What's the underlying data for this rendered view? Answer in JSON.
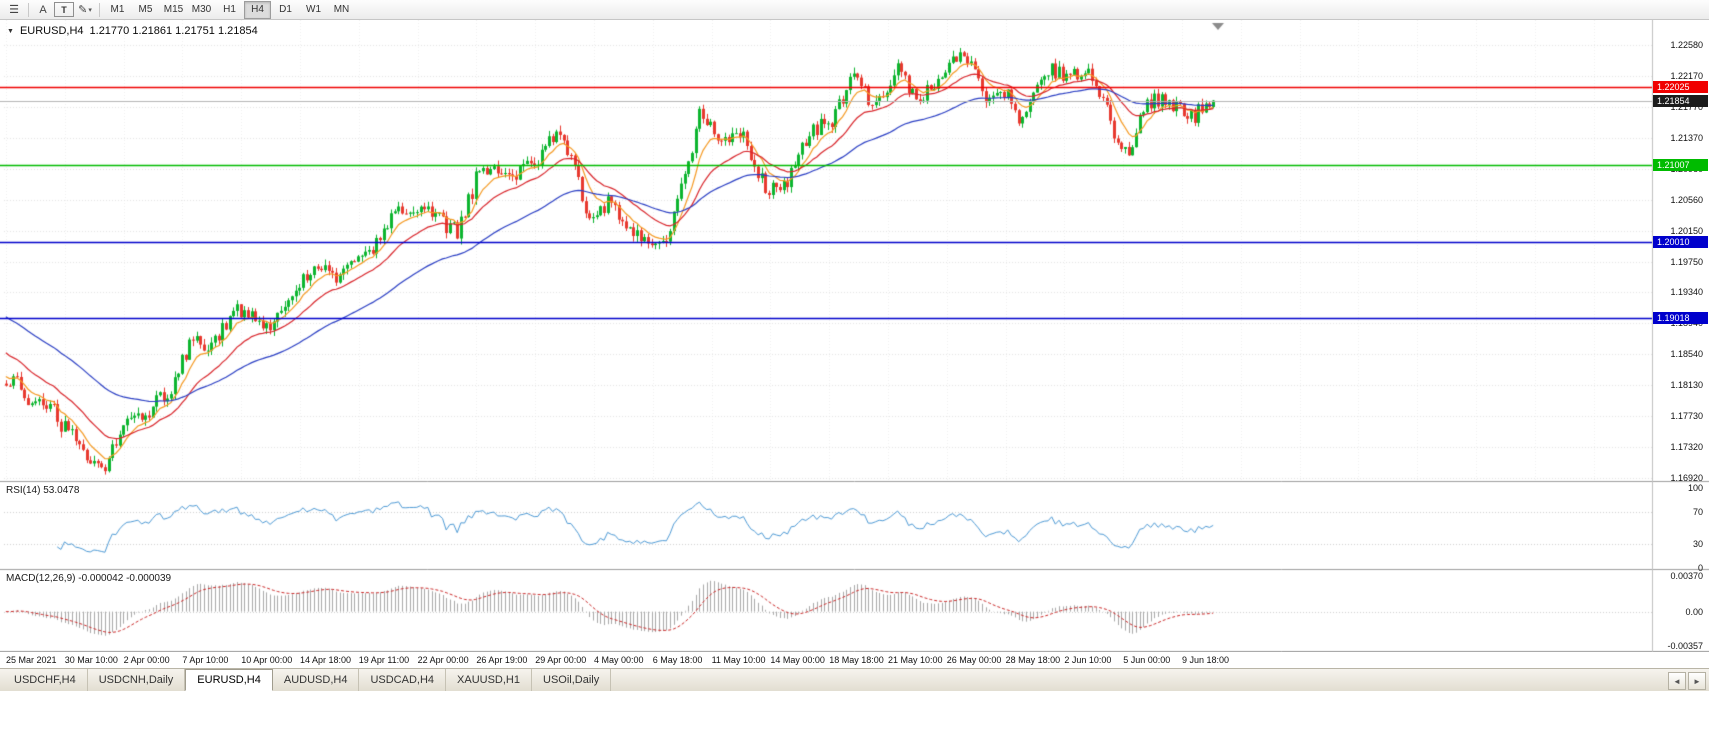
{
  "toolbar": {
    "menu_icon": "☰",
    "cursor_tool": "A",
    "text_tool": "T",
    "shapes_tool": "✎",
    "dropdown_caret": "▾",
    "timeframes": [
      "M1",
      "M5",
      "M15",
      "M30",
      "H1",
      "H4",
      "D1",
      "W1",
      "MN"
    ],
    "active_timeframe": "H4"
  },
  "chart": {
    "marker": "▼",
    "symbol": "EURUSD,H4",
    "ohlc": "1.21770 1.21861 1.21751 1.21854"
  },
  "tabs": {
    "items": [
      "USDCHF,H4",
      "USDCNH,Daily",
      "EURUSD,H4",
      "AUDUSD,H4",
      "USDCAD,H4",
      "XAUUSD,H1",
      "USOil,Daily"
    ],
    "active": "EURUSD,H4",
    "scroll_left": "◄",
    "scroll_right": "►"
  },
  "chart_data": {
    "type": "candlestick",
    "title": "EURUSD,H4",
    "timeframe": "H4",
    "bars": 330,
    "last_bar_ohlc": {
      "open": 1.2177,
      "high": 1.21861,
      "low": 1.21751,
      "close": 1.21854
    },
    "y_tick_labels": [
      "1.22580",
      "1.22170",
      "1.21770",
      "1.21370",
      "1.20960",
      "1.20560",
      "1.20150",
      "1.19750",
      "1.19340",
      "1.18940",
      "1.18540",
      "1.18130",
      "1.17730",
      "1.17320",
      "1.16920"
    ],
    "x_tick_labels": [
      "25 Mar 2021",
      "30 Mar 10:00",
      "2 Apr 00:00",
      "7 Apr 10:00",
      "10 Apr 00:00",
      "14 Apr 18:00",
      "19 Apr 11:00",
      "22 Apr 00:00",
      "26 Apr 19:00",
      "29 Apr 00:00",
      "4 May 00:00",
      "6 May 18:00",
      "11 May 10:00",
      "14 May 00:00",
      "18 May 18:00",
      "21 May 10:00",
      "26 May 00:00",
      "28 May 18:00",
      "2 Jun 10:00",
      "5 Jun 00:00",
      "9 Jun 18:00"
    ],
    "anchors_close": [
      [
        0,
        1.1812
      ],
      [
        3,
        1.1822
      ],
      [
        6,
        1.1798
      ],
      [
        9,
        1.1794
      ],
      [
        12,
        1.1788
      ],
      [
        15,
        1.1763
      ],
      [
        18,
        1.1752
      ],
      [
        21,
        1.1718
      ],
      [
        24,
        1.1712
      ],
      [
        27,
        1.1705
      ],
      [
        30,
        1.1742
      ],
      [
        33,
        1.1776
      ],
      [
        36,
        1.1768
      ],
      [
        39,
        1.1777
      ],
      [
        42,
        1.1796
      ],
      [
        45,
        1.1811
      ],
      [
        48,
        1.1842
      ],
      [
        51,
        1.1876
      ],
      [
        54,
        1.1862
      ],
      [
        57,
        1.1873
      ],
      [
        60,
        1.1892
      ],
      [
        63,
        1.1916
      ],
      [
        66,
        1.1906
      ],
      [
        69,
        1.1899
      ],
      [
        72,
        1.1894
      ],
      [
        75,
        1.1911
      ],
      [
        78,
        1.1931
      ],
      [
        81,
        1.1948
      ],
      [
        84,
        1.1966
      ],
      [
        87,
        1.1979
      ],
      [
        90,
        1.1956
      ],
      [
        93,
        1.1967
      ],
      [
        96,
        1.1976
      ],
      [
        99,
        1.1984
      ],
      [
        102,
        1.2012
      ],
      [
        105,
        1.2037
      ],
      [
        108,
        1.2043
      ],
      [
        111,
        1.2036
      ],
      [
        114,
        1.2041
      ],
      [
        117,
        1.2033
      ],
      [
        120,
        1.2021
      ],
      [
        123,
        1.2014
      ],
      [
        126,
        1.2052
      ],
      [
        129,
        1.2097
      ],
      [
        132,
        1.2091
      ],
      [
        135,
        1.2089
      ],
      [
        138,
        1.2086
      ],
      [
        141,
        1.2093
      ],
      [
        144,
        1.2106
      ],
      [
        147,
        1.2124
      ],
      [
        150,
        1.2147
      ],
      [
        153,
        1.2122
      ],
      [
        156,
        1.2078
      ],
      [
        159,
        1.2022
      ],
      [
        162,
        1.2042
      ],
      [
        165,
        1.2063
      ],
      [
        168,
        1.2028
      ],
      [
        171,
        1.2014
      ],
      [
        174,
        1.2009
      ],
      [
        177,
        1.2003
      ],
      [
        180,
        1.1993
      ],
      [
        183,
        1.2066
      ],
      [
        186,
        1.2102
      ],
      [
        189,
        1.2166
      ],
      [
        192,
        1.2151
      ],
      [
        195,
        1.2128
      ],
      [
        198,
        1.2142
      ],
      [
        201,
        1.2148
      ],
      [
        204,
        1.2098
      ],
      [
        207,
        1.2072
      ],
      [
        210,
        1.2067
      ],
      [
        213,
        1.2081
      ],
      [
        216,
        1.2112
      ],
      [
        219,
        1.2144
      ],
      [
        222,
        1.2151
      ],
      [
        225,
        1.2154
      ],
      [
        228,
        1.2192
      ],
      [
        231,
        1.2222
      ],
      [
        234,
        1.2198
      ],
      [
        237,
        1.2175
      ],
      [
        240,
        1.2203
      ],
      [
        243,
        1.2228
      ],
      [
        246,
        1.2198
      ],
      [
        249,
        1.2182
      ],
      [
        252,
        1.2202
      ],
      [
        255,
        1.2217
      ],
      [
        258,
        1.2242
      ],
      [
        261,
        1.2252
      ],
      [
        264,
        1.2218
      ],
      [
        267,
        1.2194
      ],
      [
        270,
        1.2202
      ],
      [
        273,
        1.2196
      ],
      [
        276,
        1.2161
      ],
      [
        279,
        1.2189
      ],
      [
        282,
        1.2212
      ],
      [
        285,
        1.2227
      ],
      [
        288,
        1.2221
      ],
      [
        291,
        1.2217
      ],
      [
        294,
        1.2219
      ],
      [
        297,
        1.2212
      ],
      [
        300,
        1.2172
      ],
      [
        303,
        1.2128
      ],
      [
        306,
        1.2108
      ],
      [
        309,
        1.2167
      ],
      [
        312,
        1.2181
      ],
      [
        315,
        1.219
      ],
      [
        318,
        1.2179
      ],
      [
        321,
        1.2172
      ],
      [
        324,
        1.2166
      ],
      [
        327,
        1.2179
      ],
      [
        329,
        1.2185
      ]
    ],
    "noise": {
      "seed": 20210609,
      "close_jitter": 0.0011,
      "wick": 0.0008
    },
    "overlays": {
      "emas": [
        {
          "period": 8,
          "color": "#f59a23",
          "seed": 1.1828
        },
        {
          "period": 21,
          "color": "#d9252b",
          "seed": 1.186
        },
        {
          "period": 55,
          "color": "#2b3fc4",
          "seed": 1.1906
        }
      ]
    },
    "hlines": [
      {
        "price": 1.22025,
        "label": "1.22025",
        "color": "#f00000"
      },
      {
        "price": 1.21007,
        "label": "1.21007",
        "color": "#00bb00"
      },
      {
        "price": 1.2001,
        "label": "1.20010",
        "color": "#0000cc"
      },
      {
        "price": 1.19018,
        "label": "1.19018",
        "color": "#0000cc"
      }
    ],
    "current_price": {
      "value": 1.21854,
      "label": "1.21854",
      "line_color": "#b5b5b5",
      "tag_bg": "#1c1c1c"
    },
    "rsi": {
      "period": 14,
      "label": "RSI(14) 53.0478",
      "color": "#4f9bd6",
      "levels": [
        70,
        30
      ],
      "axis_labels": [
        "100",
        "70",
        "30",
        "0"
      ],
      "range": [
        0,
        100
      ]
    },
    "macd": {
      "fast": 12,
      "slow": 26,
      "signal": 9,
      "label": "MACD(12,26,9) -0.000042 -0.000039",
      "hist_color": "#a9a9a9",
      "signal_color": "#cc2a2a",
      "axis_labels": [
        "0.00370",
        "0.00",
        "-0.00357"
      ],
      "range": [
        -0.00357,
        0.0037
      ]
    },
    "colors": {
      "up": "#0db52f",
      "down": "#e8392f",
      "grid": "#e4e4e4",
      "vgrid": "#f0f0f0"
    }
  }
}
